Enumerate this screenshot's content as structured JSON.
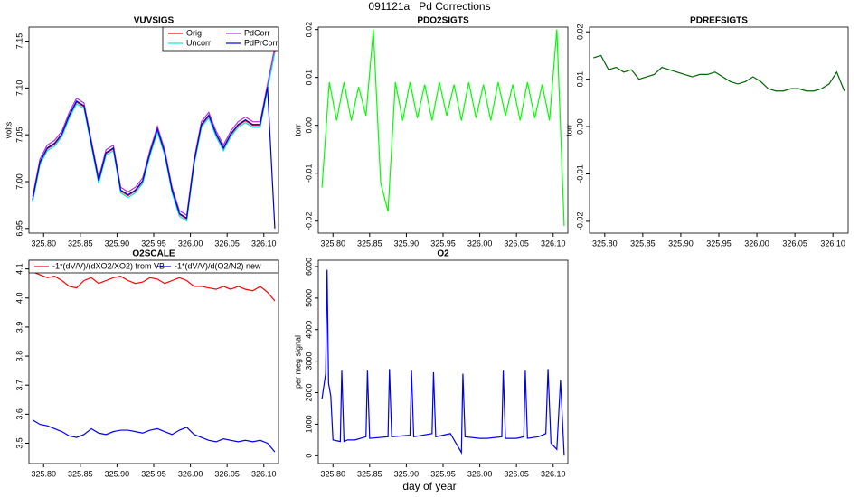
{
  "title": "091121a   Pd Corrections",
  "xlabel": "day of year",
  "chart_data": [
    {
      "type": "line",
      "title": "VUVSIGS",
      "ylabel": "volts",
      "legend": "topright",
      "x": [
        325.785,
        325.795,
        325.805,
        325.815,
        325.825,
        325.835,
        325.845,
        325.855,
        325.865,
        325.875,
        325.885,
        325.895,
        325.905,
        325.915,
        325.925,
        325.935,
        325.945,
        325.955,
        325.965,
        325.975,
        325.985,
        325.995,
        326.005,
        326.015,
        326.025,
        326.035,
        326.045,
        326.055,
        326.065,
        326.075,
        326.085,
        326.095,
        326.105,
        326.115
      ],
      "series": [
        {
          "name": "Orig",
          "color": "#ff0000",
          "values": [
            6.98,
            7.02,
            7.035,
            7.04,
            7.05,
            7.07,
            7.085,
            7.08,
            7.04,
            7.0,
            7.03,
            7.035,
            6.99,
            6.985,
            6.99,
            7.0,
            7.03,
            7.055,
            7.03,
            6.99,
            6.965,
            6.96,
            7.02,
            7.06,
            7.07,
            7.05,
            7.035,
            7.05,
            7.06,
            7.065,
            7.06,
            7.06,
            7.1,
            7.14
          ]
        },
        {
          "name": "Uncorr",
          "color": "#00e5e5",
          "values": [
            6.978,
            7.018,
            7.033,
            7.038,
            7.048,
            7.068,
            7.083,
            7.078,
            7.038,
            6.998,
            7.028,
            7.033,
            6.988,
            6.983,
            6.988,
            6.998,
            7.028,
            7.053,
            7.028,
            6.988,
            6.963,
            6.958,
            7.018,
            7.058,
            7.068,
            7.048,
            7.033,
            7.048,
            7.058,
            7.063,
            7.058,
            7.058,
            7.098,
            7.138
          ]
        },
        {
          "name": "PdCorr",
          "color": "#b030e0",
          "values": [
            6.984,
            7.024,
            7.039,
            7.044,
            7.054,
            7.074,
            7.089,
            7.084,
            7.044,
            7.004,
            7.034,
            7.039,
            6.994,
            6.989,
            6.994,
            7.004,
            7.034,
            7.059,
            7.034,
            6.994,
            6.969,
            6.964,
            7.024,
            7.064,
            7.074,
            7.054,
            7.039,
            7.054,
            7.064,
            7.069,
            7.064,
            7.064,
            7.104,
            7.144
          ]
        },
        {
          "name": "PdPrCorr",
          "color": "#0000cc",
          "values": [
            6.981,
            7.021,
            7.036,
            7.041,
            7.051,
            7.071,
            7.086,
            7.081,
            7.041,
            7.001,
            7.031,
            7.036,
            6.991,
            6.986,
            6.991,
            7.001,
            7.031,
            7.056,
            7.031,
            6.991,
            6.966,
            6.961,
            7.021,
            7.061,
            7.071,
            7.051,
            7.036,
            7.051,
            7.061,
            7.066,
            7.061,
            7.061,
            7.101,
            6.95
          ]
        }
      ],
      "xlim": [
        325.78,
        326.12
      ],
      "xticks": [
        {
          "value": 325.8,
          "label": "325.80"
        },
        325.85,
        {
          "value": 325.9,
          "label": "325.90"
        },
        325.95,
        {
          "value": 326,
          "label": "326.00"
        },
        326.05,
        {
          "value": 326.1,
          "label": "326.10"
        }
      ],
      "ylim": [
        6.945,
        7.165
      ],
      "yticks": [
        6.95,
        {
          "value": 7,
          "label": "7.00"
        },
        7.05,
        {
          "value": 7.1,
          "label": "7.10"
        },
        7.15
      ]
    },
    {
      "type": "line",
      "title": "PDO2SIGTS",
      "ylabel": "torr",
      "color": "#00ff00",
      "x": [
        325.785,
        325.795,
        325.805,
        325.815,
        325.825,
        325.835,
        325.845,
        325.855,
        325.865,
        325.875,
        325.885,
        325.895,
        325.905,
        325.915,
        325.925,
        325.935,
        325.945,
        325.955,
        325.965,
        325.975,
        325.985,
        325.995,
        326.005,
        326.015,
        326.025,
        326.035,
        326.045,
        326.055,
        326.065,
        326.075,
        326.085,
        326.095,
        326.105,
        326.115
      ],
      "values": [
        -0.013,
        0.009,
        0.001,
        0.009,
        0.001,
        0.008,
        0.002,
        0.02,
        -0.012,
        -0.018,
        0.009,
        0.001,
        0.009,
        0.0015,
        0.0085,
        0.001,
        0.009,
        0.002,
        0.0085,
        0.001,
        0.009,
        0.0015,
        0.0085,
        0.001,
        0.009,
        0.002,
        0.0085,
        0.001,
        0.009,
        0.0015,
        0.0085,
        0.001,
        0.02,
        -0.021
      ],
      "xlim": [
        325.78,
        326.12
      ],
      "xticks": [
        {
          "value": 325.8,
          "label": "325.80"
        },
        325.85,
        {
          "value": 325.9,
          "label": "325.90"
        },
        325.95,
        {
          "value": 326,
          "label": "326.00"
        },
        326.05,
        {
          "value": 326.1,
          "label": "326.10"
        }
      ],
      "ylim": [
        -0.0225,
        0.0205
      ],
      "yticks": [
        -0.02,
        -0.01,
        {
          "value": 0,
          "label": "0.00"
        },
        0.01,
        0.02
      ]
    },
    {
      "type": "line",
      "title": "PDREFSIGTS",
      "ylabel": "torr",
      "color": "#006400",
      "x": [
        325.785,
        325.795,
        325.805,
        325.815,
        325.825,
        325.835,
        325.845,
        325.855,
        325.865,
        325.875,
        325.885,
        325.895,
        325.905,
        325.915,
        325.925,
        325.935,
        325.945,
        325.955,
        325.965,
        325.975,
        325.985,
        325.995,
        326.005,
        326.015,
        326.025,
        326.035,
        326.045,
        326.055,
        326.065,
        326.075,
        326.085,
        326.095,
        326.105,
        326.115
      ],
      "values": [
        0.0145,
        0.015,
        0.012,
        0.0125,
        0.0115,
        0.012,
        0.01,
        0.0105,
        0.011,
        0.0125,
        0.012,
        0.0115,
        0.011,
        0.0105,
        0.011,
        0.011,
        0.0115,
        0.0105,
        0.0095,
        0.009,
        0.0095,
        0.0105,
        0.0095,
        0.008,
        0.0075,
        0.0075,
        0.008,
        0.008,
        0.0075,
        0.0075,
        0.008,
        0.009,
        0.0115,
        0.0075
      ],
      "xlim": [
        325.78,
        326.12
      ],
      "xticks": [
        {
          "value": 325.8,
          "label": "325.80"
        },
        325.85,
        {
          "value": 325.9,
          "label": "325.90"
        },
        325.95,
        {
          "value": 326,
          "label": "326.00"
        },
        326.05,
        {
          "value": 326.1,
          "label": "326.10"
        }
      ],
      "ylim": [
        -0.0225,
        0.021
      ],
      "yticks": [
        -0.02,
        -0.01,
        {
          "value": 0,
          "label": "0.00"
        },
        0.01,
        0.02
      ]
    },
    {
      "type": "line",
      "title": "O2SCALE",
      "legend": "top",
      "x": [
        325.785,
        325.795,
        325.805,
        325.815,
        325.825,
        325.835,
        325.845,
        325.855,
        325.865,
        325.875,
        325.885,
        325.895,
        325.905,
        325.915,
        325.925,
        325.935,
        325.945,
        325.955,
        325.965,
        325.975,
        325.985,
        325.995,
        326.005,
        326.015,
        326.025,
        326.035,
        326.045,
        326.055,
        326.065,
        326.075,
        326.085,
        326.095,
        326.105,
        326.115
      ],
      "series": [
        {
          "name": "-1*(dV/V)/(dXO2/XO2) from VB",
          "color": "#ff0000",
          "values": [
            4.09,
            4.08,
            4.07,
            4.075,
            4.06,
            4.04,
            4.035,
            4.06,
            4.07,
            4.05,
            4.06,
            4.07,
            4.075,
            4.06,
            4.05,
            4.055,
            4.07,
            4.065,
            4.05,
            4.06,
            4.07,
            4.06,
            4.04,
            4.04,
            4.035,
            4.03,
            4.04,
            4.03,
            4.04,
            4.03,
            4.025,
            4.04,
            4.02,
            3.99
          ]
        },
        {
          "name": "-1*(dV/V)/d(O2/N2) new",
          "color": "#0000ee",
          "values": [
            3.58,
            3.565,
            3.56,
            3.55,
            3.54,
            3.525,
            3.52,
            3.53,
            3.55,
            3.535,
            3.53,
            3.54,
            3.545,
            3.545,
            3.54,
            3.535,
            3.545,
            3.55,
            3.54,
            3.53,
            3.545,
            3.555,
            3.53,
            3.52,
            3.51,
            3.505,
            3.515,
            3.51,
            3.505,
            3.51,
            3.505,
            3.51,
            3.5,
            3.47
          ]
        }
      ],
      "xlim": [
        325.78,
        326.12
      ],
      "xticks": [
        {
          "value": 325.8,
          "label": "325.80"
        },
        325.85,
        {
          "value": 325.9,
          "label": "325.90"
        },
        325.95,
        {
          "value": 326,
          "label": "326.00"
        },
        326.05,
        {
          "value": 326.1,
          "label": "326.10"
        }
      ],
      "ylim": [
        3.43,
        4.13
      ],
      "yticks": [
        3.5,
        3.6,
        3.7,
        3.8,
        3.9,
        {
          "value": 4,
          "label": "4.0"
        },
        4.1
      ]
    },
    {
      "type": "line",
      "title": "O2",
      "ylabel": "per meg signal",
      "color": "#0000ee",
      "x": [
        325.785,
        325.79,
        325.792,
        325.794,
        325.797,
        325.8,
        325.81,
        325.812,
        325.815,
        325.82,
        325.83,
        325.845,
        325.847,
        325.85,
        325.875,
        325.877,
        325.88,
        325.905,
        325.907,
        325.91,
        325.935,
        325.937,
        325.94,
        325.96,
        325.975,
        325.977,
        325.98,
        326.0,
        326.01,
        326.03,
        326.032,
        326.035,
        326.05,
        326.06,
        326.062,
        326.065,
        326.08,
        326.09,
        326.093,
        326.097,
        326.105,
        326.11,
        326.115
      ],
      "values": [
        1800,
        2600,
        5900,
        2300,
        1900,
        500,
        450,
        2700,
        450,
        500,
        500,
        600,
        2700,
        550,
        600,
        2750,
        600,
        650,
        2700,
        600,
        700,
        2650,
        600,
        700,
        100,
        2600,
        600,
        550,
        550,
        600,
        2700,
        550,
        550,
        600,
        2700,
        550,
        600,
        700,
        2750,
        400,
        200,
        2400,
        0
      ],
      "xlim": [
        325.78,
        326.12
      ],
      "xticks": [
        {
          "value": 325.8,
          "label": "325.80"
        },
        325.85,
        {
          "value": 325.9,
          "label": "325.90"
        },
        325.95,
        {
          "value": 326,
          "label": "326.00"
        },
        326.05,
        {
          "value": 326.1,
          "label": "326.10"
        }
      ],
      "ylim": [
        -250,
        6200
      ],
      "yticks": [
        0,
        1000,
        2000,
        3000,
        4000,
        5000,
        6000
      ]
    }
  ]
}
